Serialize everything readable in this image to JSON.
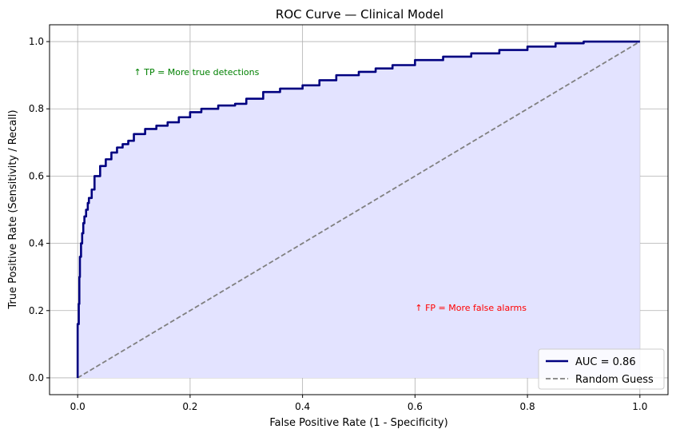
{
  "chart_data": {
    "type": "line",
    "title": "ROC Curve — Clinical Model",
    "xlabel": "False Positive Rate (1 - Specificity)",
    "ylabel": "True Positive Rate (Sensitivity / Recall)",
    "xlim": [
      -0.05,
      1.05
    ],
    "ylim": [
      -0.05,
      1.05
    ],
    "xticks": [
      0.0,
      0.2,
      0.4,
      0.6,
      0.8,
      1.0
    ],
    "yticks": [
      0.0,
      0.2,
      0.4,
      0.6,
      0.8,
      1.0
    ],
    "xtick_labels": [
      "0.0",
      "0.2",
      "0.4",
      "0.6",
      "0.8",
      "1.0"
    ],
    "ytick_labels": [
      "0.0",
      "0.2",
      "0.4",
      "0.6",
      "0.8",
      "1.0"
    ],
    "grid": true,
    "legend_position": "bottom-right",
    "series": [
      {
        "name": "AUC = 0.86",
        "color": "#000080",
        "style": "solid",
        "fill": "#e3e3ff",
        "x": [
          0.0,
          0.0,
          0.002,
          0.003,
          0.004,
          0.006,
          0.008,
          0.01,
          0.012,
          0.015,
          0.018,
          0.02,
          0.025,
          0.03,
          0.04,
          0.05,
          0.06,
          0.07,
          0.08,
          0.09,
          0.1,
          0.12,
          0.14,
          0.16,
          0.18,
          0.2,
          0.22,
          0.25,
          0.28,
          0.3,
          0.33,
          0.36,
          0.4,
          0.43,
          0.46,
          0.5,
          0.53,
          0.56,
          0.6,
          0.65,
          0.7,
          0.75,
          0.8,
          0.85,
          0.9,
          0.95,
          1.0
        ],
        "y": [
          0.0,
          0.1,
          0.16,
          0.22,
          0.3,
          0.36,
          0.4,
          0.43,
          0.46,
          0.48,
          0.5,
          0.52,
          0.535,
          0.56,
          0.6,
          0.63,
          0.65,
          0.67,
          0.685,
          0.695,
          0.705,
          0.725,
          0.74,
          0.75,
          0.76,
          0.775,
          0.79,
          0.8,
          0.81,
          0.815,
          0.83,
          0.85,
          0.86,
          0.87,
          0.885,
          0.9,
          0.91,
          0.92,
          0.93,
          0.945,
          0.955,
          0.965,
          0.975,
          0.985,
          0.995,
          1.0,
          1.0
        ]
      },
      {
        "name": "Random Guess",
        "color": "#808080",
        "style": "dashed",
        "x": [
          0.0,
          1.0
        ],
        "y": [
          0.0,
          1.0
        ]
      }
    ],
    "annotations": [
      {
        "text": "↑ TP = More true detections",
        "x": 0.1,
        "y": 0.9,
        "color": "#008000"
      },
      {
        "text": "↑ FP = More false alarms",
        "x": 0.6,
        "y": 0.2,
        "color": "#ff0000"
      }
    ]
  }
}
